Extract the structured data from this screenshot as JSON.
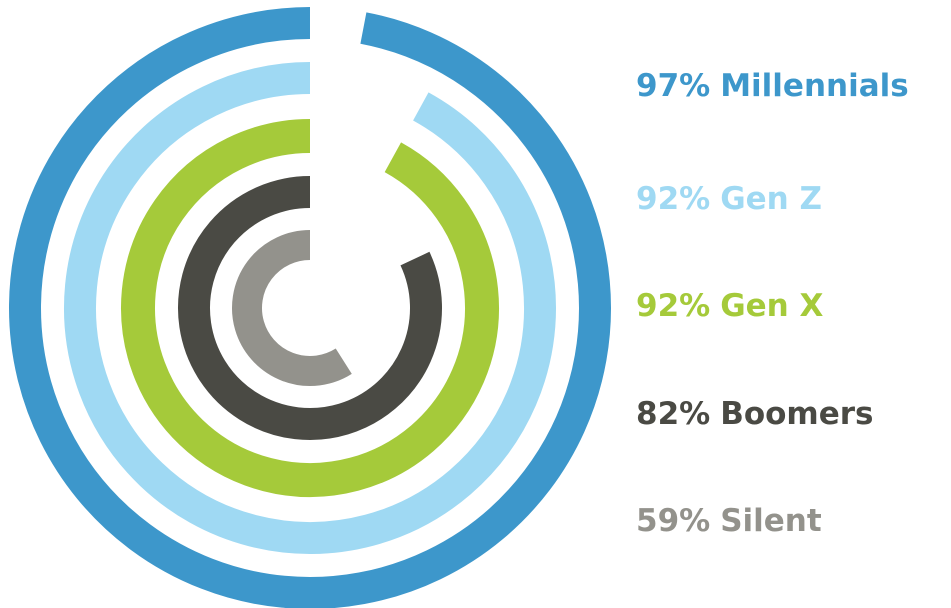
{
  "chart_data": {
    "type": "radial_bar",
    "categories": [
      "Millennials",
      "Gen Z",
      "Gen X",
      "Boomers",
      "Silent"
    ],
    "values": [
      97,
      92,
      92,
      82,
      59
    ],
    "value_labels": [
      "97%",
      "92%",
      "92%",
      "82%",
      "59%"
    ],
    "colors": [
      "#3d97cb",
      "#9fd9f3",
      "#a5ca3a",
      "#4a4a44",
      "#93928c"
    ]
  }
}
